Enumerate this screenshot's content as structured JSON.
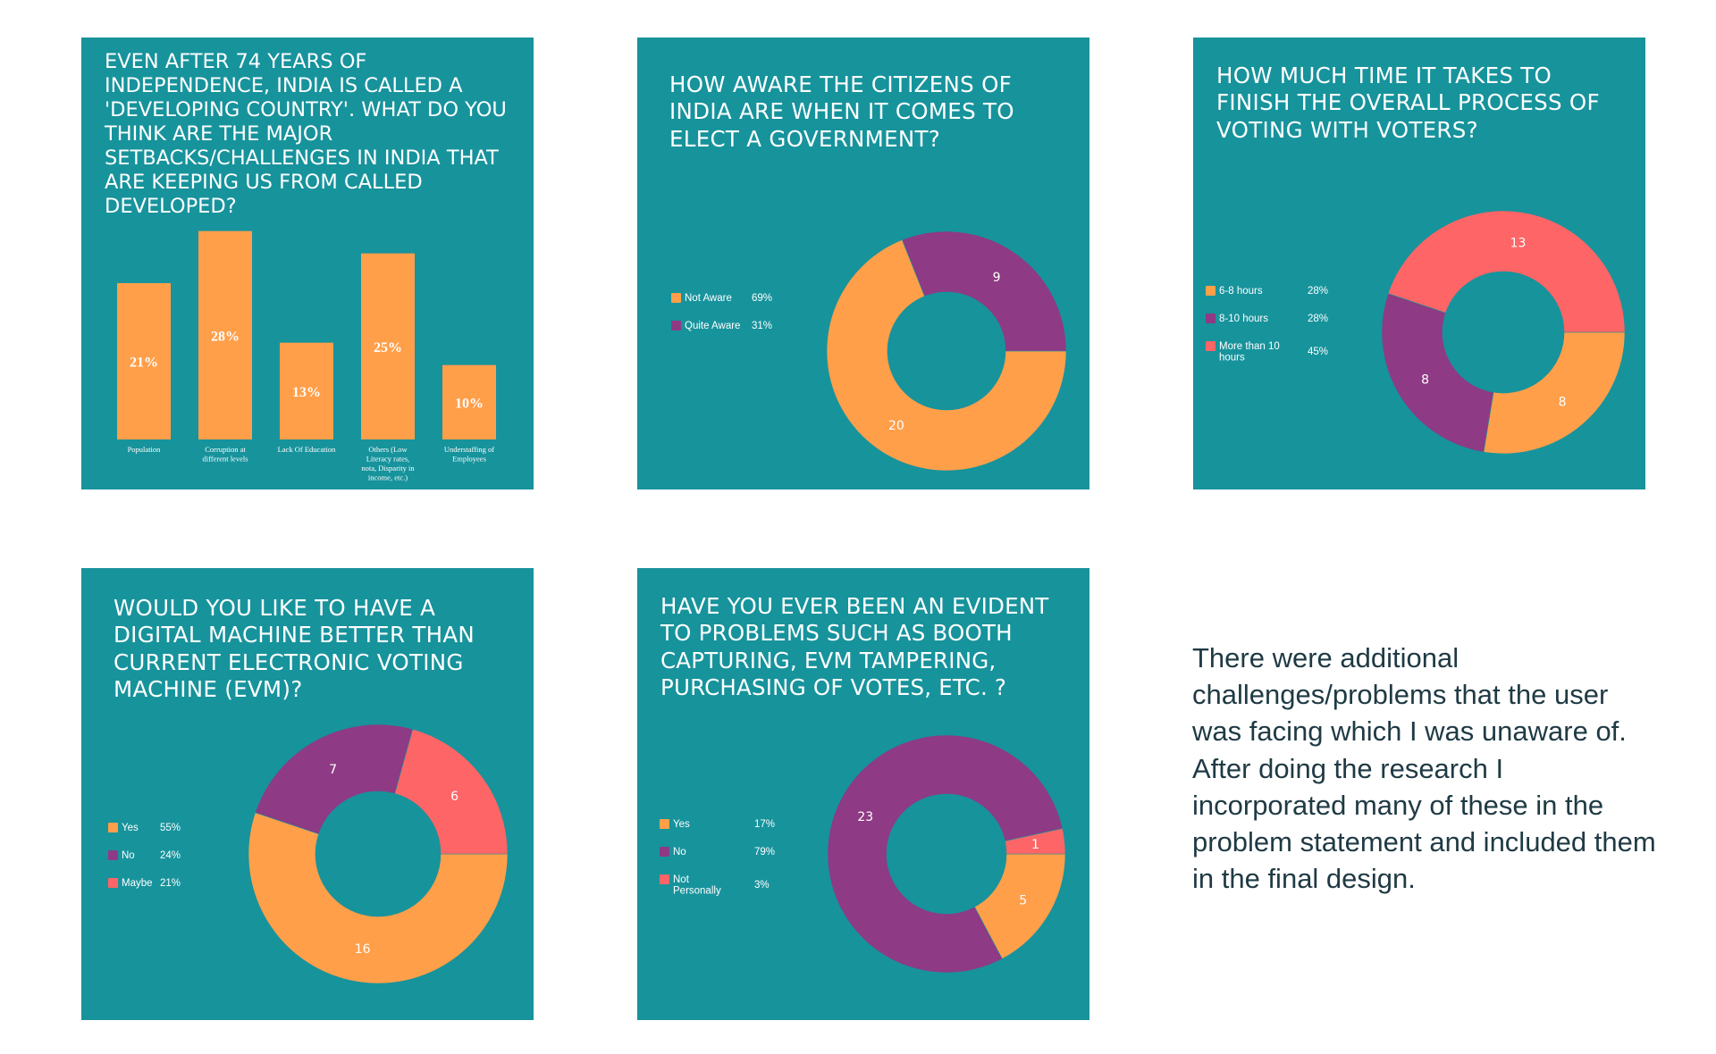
{
  "colors": {
    "panel": "#17939c",
    "orange": "#ff9f4a",
    "purple": "#8e3a84",
    "red": "#fe6566",
    "text": "#1f3a44"
  },
  "note": "There were additional challenges/problems that the user was facing which I was unaware of. After doing the research I incorporated many of these in the problem statement and included them in the final design.",
  "chart_data": [
    {
      "type": "bar",
      "title": "EVEN AFTER 74 YEARS OF INDEPENDENCE, INDIA IS CALLED A 'DEVELOPING COUNTRY'. WHAT DO YOU THINK ARE THE MAJOR SETBACKS/CHALLENGES IN INDIA THAT ARE KEEPING US FROM CALLED DEVELOPED?",
      "categories": [
        [
          "Population"
        ],
        [
          "Corruption at",
          "different levels"
        ],
        [
          "Lack Of Education"
        ],
        [
          "Others (Low",
          "Literacy rates,",
          "nota, Disparity in",
          "income, etc.)"
        ],
        [
          "Understaffing of",
          "Employees"
        ]
      ],
      "values": [
        21,
        28,
        13,
        25,
        10
      ],
      "value_labels": [
        "21%",
        "28%",
        "13%",
        "25%",
        "10%"
      ],
      "ylim": [
        0,
        30
      ],
      "color": "#ff9f4a"
    },
    {
      "type": "pie",
      "title": "HOW AWARE THE CITIZENS OF INDIA ARE WHEN IT COMES TO ELECT A GOVERNMENT?",
      "slices": [
        {
          "label": "Not Aware",
          "value": 20,
          "pct": "69%",
          "color": "#ff9f4a"
        },
        {
          "label": "Quite Aware",
          "value": 9,
          "pct": "31%",
          "color": "#8e3a84"
        }
      ]
    },
    {
      "type": "pie",
      "title": "HOW MUCH TIME IT TAKES TO FINISH THE OVERALL PROCESS OF VOTING WITH VOTERS?",
      "slices": [
        {
          "label": "6-8 hours",
          "value": 8,
          "pct": "28%",
          "color": "#ff9f4a"
        },
        {
          "label": "8-10 hours",
          "value": 8,
          "pct": "28%",
          "color": "#8e3a84"
        },
        {
          "label": "More than 10 hours",
          "value": 13,
          "pct": "45%",
          "color": "#fe6566"
        }
      ]
    },
    {
      "type": "pie",
      "title": "WOULD YOU LIKE TO HAVE A DIGITAL MACHINE BETTER THAN CURRENT ELECTRONIC VOTING MACHINE (EVM)?",
      "slices": [
        {
          "label": "Yes",
          "value": 16,
          "pct": "55%",
          "color": "#ff9f4a"
        },
        {
          "label": "No",
          "value": 7,
          "pct": "24%",
          "color": "#8e3a84"
        },
        {
          "label": "Maybe",
          "value": 6,
          "pct": "21%",
          "color": "#fe6566"
        }
      ]
    },
    {
      "type": "pie",
      "title": "HAVE YOU EVER BEEN AN EVIDENT TO PROBLEMS SUCH AS BOOTH CAPTURING, EVM TAMPERING, PURCHASING OF VOTES, ETC. ?",
      "slices": [
        {
          "label": "Yes",
          "value": 5,
          "pct": "17%",
          "color": "#ff9f4a"
        },
        {
          "label": "No",
          "value": 23,
          "pct": "79%",
          "color": "#8e3a84"
        },
        {
          "label": "Not Personally",
          "value": 1,
          "pct": "3%",
          "color": "#fe6566"
        }
      ]
    }
  ]
}
